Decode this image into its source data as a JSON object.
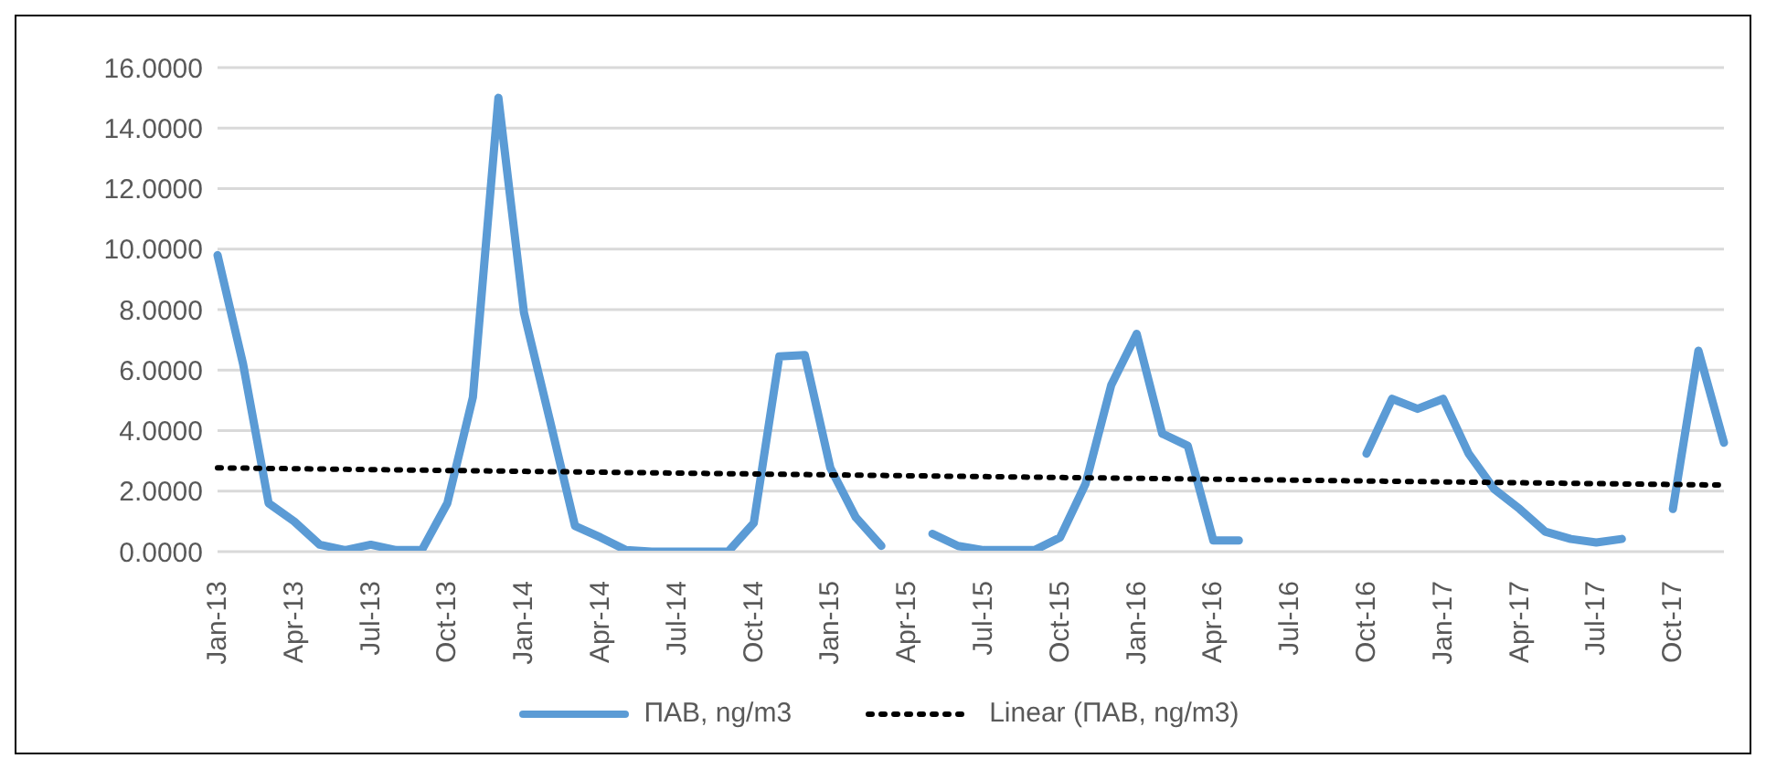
{
  "chart_data": {
    "type": "line",
    "categories": [
      "Jan-13",
      null,
      null,
      "Apr-13",
      null,
      null,
      "Jul-13",
      null,
      null,
      "Oct-13",
      null,
      null,
      "Jan-14",
      null,
      null,
      "Apr-14",
      null,
      null,
      "Jul-14",
      null,
      null,
      "Oct-14",
      null,
      null,
      "Jan-15",
      null,
      null,
      "Apr-15",
      null,
      null,
      "Jul-15",
      null,
      null,
      "Oct-15",
      null,
      null,
      "Jan-16",
      null,
      null,
      "Apr-16",
      null,
      null,
      "Jul-16",
      null,
      null,
      "Oct-16",
      null,
      null,
      "Jan-17",
      null,
      null,
      "Apr-17",
      null,
      null,
      "Jul-17",
      null,
      null,
      "Oct-17",
      null,
      null
    ],
    "series": [
      {
        "name": "ПАВ, ng/m3",
        "color": "#5b9bd5",
        "values": [
          9.8,
          6.2,
          1.6,
          1.0,
          0.23,
          0.05,
          0.23,
          0.05,
          0.05,
          1.6,
          5.1,
          15.0,
          7.9,
          4.4,
          0.85,
          0.47,
          0.05,
          0,
          0,
          0,
          0,
          0.94,
          6.45,
          6.5,
          2.77,
          1.13,
          0.19,
          null,
          0.59,
          0.19,
          0.05,
          0.05,
          0.05,
          0.47,
          2.25,
          5.5,
          7.2,
          3.9,
          3.5,
          0.37,
          0.37,
          null,
          null,
          null,
          null,
          3.24,
          5.05,
          4.72,
          5.05,
          3.24,
          2.07,
          1.41,
          0.66,
          0.42,
          0.3,
          0.42,
          null,
          1.41,
          6.64,
          3.6
        ]
      },
      {
        "name": "Linear (ПАВ, ng/m3)",
        "type": "line",
        "color": "#000000",
        "line_style": "dotted",
        "values": [
          2.77,
          null,
          null,
          null,
          null,
          null,
          null,
          null,
          null,
          null,
          null,
          null,
          null,
          null,
          null,
          null,
          null,
          null,
          null,
          null,
          null,
          null,
          null,
          null,
          null,
          null,
          null,
          null,
          null,
          null,
          null,
          null,
          null,
          null,
          null,
          null,
          null,
          null,
          null,
          null,
          null,
          null,
          null,
          null,
          null,
          null,
          null,
          null,
          null,
          null,
          null,
          null,
          null,
          null,
          null,
          null,
          null,
          null,
          null,
          2.2
        ]
      }
    ],
    "ylim": [
      0,
      16
    ],
    "yticks": [
      {
        "value": 0,
        "label": "0.0000"
      },
      {
        "value": 2,
        "label": "2.0000"
      },
      {
        "value": 4,
        "label": "4.0000"
      },
      {
        "value": 6,
        "label": "6.0000"
      },
      {
        "value": 8,
        "label": "8.0000"
      },
      {
        "value": 10,
        "label": "10.0000"
      },
      {
        "value": 12,
        "label": "12.0000"
      },
      {
        "value": 14,
        "label": "14.0000"
      },
      {
        "value": 16,
        "label": "16.0000"
      }
    ],
    "grid": "y",
    "legend": "bottom",
    "marker": "none",
    "line_style": "solid"
  }
}
